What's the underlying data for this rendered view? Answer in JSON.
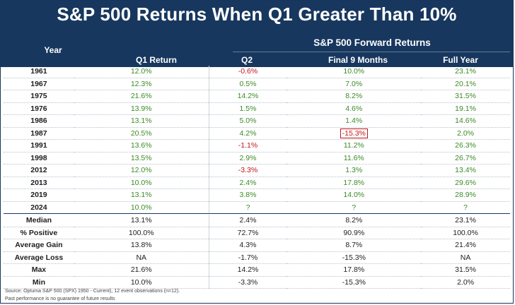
{
  "title": "S&P 500 Returns When Q1 Greater Than 10%",
  "group_label": "S&P 500 Forward Returns",
  "headers": {
    "year": "Year",
    "q1": "Q1 Return",
    "q2": "Q2",
    "final9": "Final 9 Months",
    "full_year": "Full Year"
  },
  "rows": [
    {
      "year": "1961",
      "q1": "12.0%",
      "q2": "-0.6%",
      "f9": "10.0%",
      "fy": "23.1%",
      "q2_sign": "neg",
      "f9_sign": "pos",
      "fy_sign": "pos"
    },
    {
      "year": "1967",
      "q1": "12.3%",
      "q2": "0.5%",
      "f9": "7.0%",
      "fy": "20.1%",
      "q2_sign": "pos",
      "f9_sign": "pos",
      "fy_sign": "pos"
    },
    {
      "year": "1975",
      "q1": "21.6%",
      "q2": "14.2%",
      "f9": "8.2%",
      "fy": "31.5%",
      "q2_sign": "pos",
      "f9_sign": "pos",
      "fy_sign": "pos"
    },
    {
      "year": "1976",
      "q1": "13.9%",
      "q2": "1.5%",
      "f9": "4.6%",
      "fy": "19.1%",
      "q2_sign": "pos",
      "f9_sign": "pos",
      "fy_sign": "pos"
    },
    {
      "year": "1986",
      "q1": "13.1%",
      "q2": "5.0%",
      "f9": "1.4%",
      "fy": "14.6%",
      "q2_sign": "pos",
      "f9_sign": "pos",
      "fy_sign": "pos"
    },
    {
      "year": "1987",
      "q1": "20.5%",
      "q2": "4.2%",
      "f9": "-15.3%",
      "fy": "2.0%",
      "q2_sign": "pos",
      "f9_sign": "hl-neg",
      "fy_sign": "pos"
    },
    {
      "year": "1991",
      "q1": "13.6%",
      "q2": "-1.1%",
      "f9": "11.2%",
      "fy": "26.3%",
      "q2_sign": "neg",
      "f9_sign": "pos",
      "fy_sign": "pos"
    },
    {
      "year": "1998",
      "q1": "13.5%",
      "q2": "2.9%",
      "f9": "11.6%",
      "fy": "26.7%",
      "q2_sign": "pos",
      "f9_sign": "pos",
      "fy_sign": "pos"
    },
    {
      "year": "2012",
      "q1": "12.0%",
      "q2": "-3.3%",
      "f9": "1.3%",
      "fy": "13.4%",
      "q2_sign": "neg",
      "f9_sign": "pos",
      "fy_sign": "pos"
    },
    {
      "year": "2013",
      "q1": "10.0%",
      "q2": "2.4%",
      "f9": "17.8%",
      "fy": "29.6%",
      "q2_sign": "pos",
      "f9_sign": "pos",
      "fy_sign": "pos"
    },
    {
      "year": "2019",
      "q1": "13.1%",
      "q2": "3.8%",
      "f9": "14.0%",
      "fy": "28.9%",
      "q2_sign": "pos",
      "f9_sign": "pos",
      "fy_sign": "pos"
    },
    {
      "year": "2024",
      "q1": "10.0%",
      "q2": "?",
      "f9": "?",
      "fy": "?",
      "q2_sign": "pos",
      "f9_sign": "pos",
      "fy_sign": "pos"
    }
  ],
  "stats": [
    {
      "label": "Median",
      "q1": "13.1%",
      "q2": "2.4%",
      "f9": "8.2%",
      "fy": "23.1%"
    },
    {
      "label": "% Positive",
      "q1": "100.0%",
      "q2": "72.7%",
      "f9": "90.9%",
      "fy": "100.0%"
    },
    {
      "label": "Average Gain",
      "q1": "13.8%",
      "q2": "4.3%",
      "f9": "8.7%",
      "fy": "21.4%"
    },
    {
      "label": "Average Loss",
      "q1": "NA",
      "q2": "-1.7%",
      "f9": "-15.3%",
      "fy": "NA"
    },
    {
      "label": "Max",
      "q1": "21.6%",
      "q2": "14.2%",
      "f9": "17.8%",
      "fy": "31.5%"
    },
    {
      "label": "Min",
      "q1": "10.0%",
      "q2": "-3.3%",
      "f9": "-15.3%",
      "fy": "2.0%"
    }
  ],
  "footnotes": {
    "source": "Source: Optuma S&P 500 (SPX) 1950 - Current), 12 event observations (n=12).",
    "disclaimer": "Past performance is no guarantee of future results"
  },
  "colors": {
    "header_bg": "#17375e",
    "positive": "#3c8a26",
    "negative": "#c0141c"
  }
}
